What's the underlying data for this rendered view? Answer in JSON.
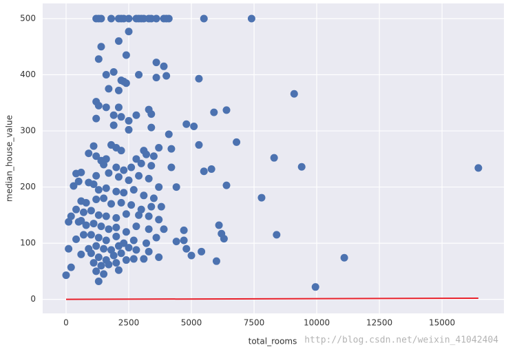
{
  "chart_data": {
    "type": "scatter",
    "x_label": "total_rooms",
    "y_label": "median_house_value",
    "watermark": "http://blog.csdn.net/weixin_41042404",
    "xlim": [
      -934,
      17470
    ],
    "ylim": [
      -25,
      527
    ],
    "xticks": [
      0,
      2500,
      5000,
      7500,
      10000,
      12500,
      15000
    ],
    "yticks": [
      0,
      100,
      200,
      300,
      400,
      500
    ],
    "grid": true,
    "series": [
      {
        "type": "scatter",
        "color": "#4c72b0",
        "x": [
          1200,
          1300,
          1400,
          1800,
          2100,
          2200,
          2300,
          2500,
          2800,
          2900,
          3000,
          3100,
          3300,
          3400,
          3600,
          3900,
          4000,
          4100,
          5500,
          7400,
          1400,
          1300,
          2100,
          2400,
          2500,
          1600,
          1900,
          2200,
          2400,
          2900,
          3600,
          3900,
          3600,
          4000,
          5300,
          1700,
          2100,
          2300,
          9100,
          1200,
          1300,
          1600,
          2100,
          1200,
          1900,
          2200,
          2500,
          2800,
          3300,
          3400,
          5900,
          6400,
          1900,
          2500,
          3400,
          4800,
          5100,
          4100,
          6800,
          5300,
          1100,
          1800,
          2000,
          3100,
          3200,
          3700,
          4200,
          900,
          1200,
          1400,
          1600,
          2200,
          2800,
          3500,
          8300,
          1500,
          2000,
          2300,
          2600,
          3000,
          3400,
          4200,
          5500,
          5800,
          9400,
          16450,
          400,
          600,
          1200,
          1700,
          2100,
          2500,
          2900,
          3300,
          3700,
          4400,
          300,
          500,
          900,
          1100,
          1300,
          1600,
          2000,
          2300,
          2700,
          3100,
          3500,
          6400,
          7800,
          600,
          800,
          1200,
          1500,
          1800,
          2200,
          2600,
          3000,
          3400,
          3800,
          400,
          700,
          1000,
          1300,
          1600,
          2000,
          2400,
          2900,
          3300,
          3700,
          100,
          500,
          800,
          1100,
          1400,
          1700,
          2000,
          2400,
          2800,
          3300,
          3900,
          4700,
          6100,
          200,
          600,
          1000,
          1300,
          1600,
          2000,
          2300,
          2700,
          3200,
          3600,
          4400,
          4700,
          6200,
          6300,
          8400,
          400,
          700,
          900,
          1200,
          1500,
          1800,
          2100,
          2500,
          2800,
          3300,
          4800,
          5400,
          100,
          600,
          1000,
          1300,
          1600,
          1900,
          2200,
          2700,
          3100,
          3700,
          5000,
          6000,
          11100,
          1100,
          1400,
          1700,
          2000,
          2400,
          200,
          1200,
          1500,
          2100,
          0,
          1300,
          9950
        ],
        "values": [
          500,
          500,
          500,
          500,
          500,
          500,
          500,
          500,
          500,
          500,
          500,
          500,
          500,
          500,
          500,
          500,
          500,
          500,
          500,
          500,
          450,
          428,
          460,
          435,
          477,
          400,
          405,
          390,
          385,
          400,
          422,
          415,
          395,
          398,
          393,
          375,
          372,
          388,
          366,
          352,
          345,
          342,
          342,
          322,
          328,
          325,
          318,
          328,
          338,
          330,
          333,
          337,
          310,
          302,
          306,
          312,
          308,
          294,
          280,
          275,
          273,
          275,
          270,
          265,
          258,
          270,
          268,
          260,
          255,
          247,
          250,
          265,
          250,
          255,
          252,
          240,
          235,
          230,
          235,
          242,
          238,
          235,
          228,
          232,
          236,
          234,
          224,
          226,
          220,
          225,
          218,
          212,
          220,
          215,
          200,
          200,
          202,
          210,
          208,
          205,
          195,
          198,
          192,
          190,
          195,
          185,
          180,
          203,
          181,
          175,
          172,
          178,
          180,
          170,
          172,
          168,
          160,
          165,
          165,
          160,
          155,
          158,
          150,
          148,
          145,
          152,
          150,
          148,
          142,
          138,
          138,
          132,
          135,
          130,
          125,
          128,
          120,
          130,
          125,
          125,
          123,
          132,
          148,
          140,
          115,
          110,
          105,
          112,
          100,
          105,
          100,
          110,
          103,
          105,
          117,
          108,
          115,
          107,
          115,
          90,
          95,
          90,
          88,
          95,
          92,
          88,
          85,
          90,
          85,
          90,
          80,
          82,
          75,
          70,
          78,
          82,
          72,
          72,
          75,
          78,
          68,
          74,
          65,
          60,
          62,
          65,
          70,
          57,
          50,
          45,
          52,
          43,
          32,
          22
        ]
      },
      {
        "type": "line",
        "color": "#e8202a",
        "x": [
          0,
          16450
        ],
        "values": [
          0,
          2
        ]
      }
    ]
  }
}
